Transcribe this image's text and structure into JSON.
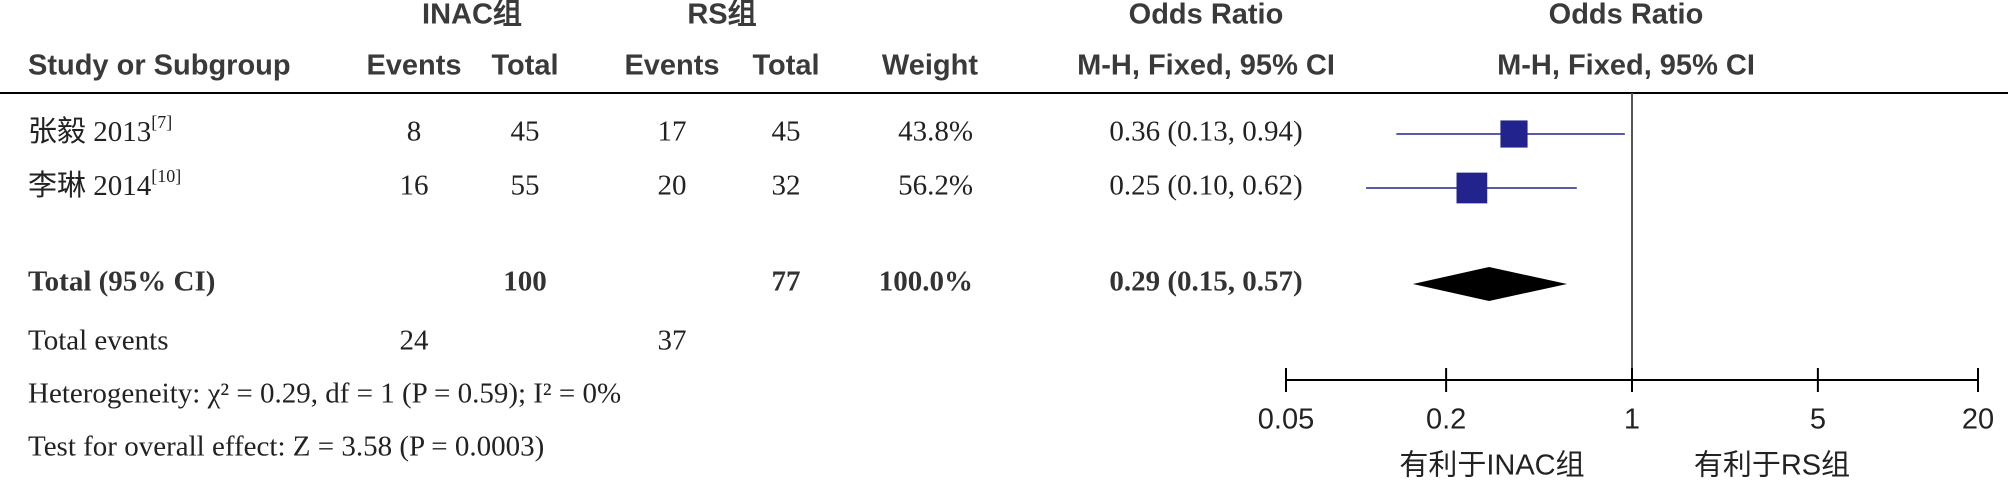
{
  "chart_data": {
    "type": "forest",
    "group_headers": [
      "INAC组",
      "RS组",
      "Odds Ratio",
      "Odds Ratio"
    ],
    "column_headers": [
      "Study or Subgroup",
      "Events",
      "Total",
      "Events",
      "Total",
      "Weight",
      "M-H, Fixed, 95% CI",
      "M-H, Fixed, 95% CI"
    ],
    "studies": [
      {
        "name": "张毅 2013",
        "ref": "[7]",
        "events1": 8,
        "total1": 45,
        "events2": 17,
        "total2": 45,
        "weight": 43.8,
        "weight_label": "43.8%",
        "or": 0.36,
        "ci": [
          0.13,
          0.94
        ],
        "ci_label": "0.36 (0.13, 0.94)"
      },
      {
        "name": "李琳 2014",
        "ref": "[10]",
        "events1": 16,
        "total1": 55,
        "events2": 20,
        "total2": 32,
        "weight": 56.2,
        "weight_label": "56.2%",
        "or": 0.25,
        "ci": [
          0.1,
          0.62
        ],
        "ci_label": "0.25 (0.10, 0.62)"
      }
    ],
    "total": {
      "name": "Total (95% CI)",
      "total1": 100,
      "total2": 77,
      "weight": 100,
      "weight_label": "100.0%",
      "or": 0.29,
      "ci": [
        0.15,
        0.57
      ],
      "ci_label": "0.29 (0.15, 0.57)"
    },
    "total_events": {
      "name": "Total events",
      "events1": 24,
      "events2": 37
    },
    "heterogeneity": "Heterogeneity: χ² = 0.29, df = 1 (P = 0.59); I² = 0%",
    "overall_effect": "Test for overall effect: Z = 3.58 (P = 0.0003)",
    "log_scale": true,
    "xlim": [
      0.05,
      20
    ],
    "xticks": [
      0.05,
      0.2,
      1,
      5,
      20
    ],
    "x_labels": [
      "有利于INAC组",
      "有利于RS组"
    ],
    "marker_color": "#23238e",
    "diamond_color": "#000000"
  }
}
